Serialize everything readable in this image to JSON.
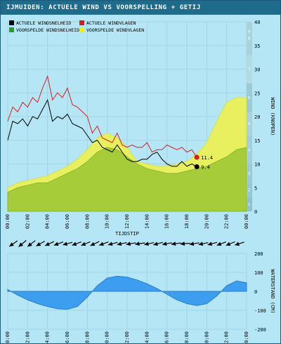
{
  "title": "IJMUIDEN: ACTUELE WIND VS VOORSPELLING + GETIJ",
  "colors": {
    "background": "#b4e6f5",
    "title_bar": "#1f6b8c",
    "actual_speed": "#000000",
    "actual_gust": "#d62020",
    "forecast_speed": "#a6cc3a",
    "forecast_gust": "#e8f060",
    "tide": "#3d9ef0",
    "bft_bar": "#9ccbd6"
  },
  "chart_data": [
    {
      "type": "area",
      "chart_id": "wind",
      "xlabel": "TIJDSTIP",
      "ylabel": "WIND (KNOPEN)",
      "ylim": [
        0,
        40
      ],
      "xlim": [
        0,
        24
      ],
      "y_ticks": [
        "0",
        "5",
        "10",
        "15",
        "20",
        "25",
        "30",
        "35",
        "40"
      ],
      "x_ticks": [
        "00:00",
        "02:00",
        "04:00",
        "06:00",
        "08:00",
        "10:00",
        "12:00",
        "14:00",
        "16:00",
        "18:00",
        "20:00",
        "22:00",
        "00:00"
      ],
      "beaufort_labels": [
        "1",
        "2",
        "3",
        "4",
        "5",
        "6",
        "7",
        "8",
        "9",
        "10",
        "11",
        "12"
      ],
      "grid": true,
      "legend_position": "top-left",
      "legend": [
        "ACTUELE WINDSNELHEID",
        "ACTUELE WINDVLAGEN",
        "VOORSPELDE WINDSNELHEID",
        "VOORSPELDE WINDVLAGEN"
      ],
      "series": [
        {
          "name": "ACTUELE WINDSNELHEID",
          "x": [
            0,
            0.5,
            1,
            1.5,
            2,
            2.5,
            3,
            3.5,
            4,
            4.5,
            5,
            5.5,
            6,
            6.5,
            7,
            7.5,
            8,
            8.5,
            9,
            9.5,
            10,
            10.5,
            11,
            11.5,
            12,
            12.5,
            13,
            13.5,
            14,
            14.5,
            15,
            15.5,
            16,
            16.5,
            17,
            17.5,
            18,
            18.5,
            19
          ],
          "values": [
            15,
            19,
            18.5,
            19.5,
            18,
            20,
            19.5,
            21.5,
            23.5,
            19,
            20,
            19.5,
            20.5,
            18.5,
            18,
            17.5,
            16,
            14.5,
            15,
            13.5,
            13,
            12.5,
            14,
            12.5,
            11,
            10.5,
            10.5,
            11,
            11,
            12,
            12.5,
            11,
            10,
            9.5,
            9.5,
            10.5,
            9.5,
            10,
            9.4
          ]
        },
        {
          "name": "ACTUELE WINDVLAGEN",
          "x": [
            0,
            0.5,
            1,
            1.5,
            2,
            2.5,
            3,
            3.5,
            4,
            4.5,
            5,
            5.5,
            6,
            6.5,
            7,
            7.5,
            8,
            8.5,
            9,
            9.5,
            10,
            10.5,
            11,
            11.5,
            12,
            12.5,
            13,
            13.5,
            14,
            14.5,
            15,
            15.5,
            16,
            16.5,
            17,
            17.5,
            18,
            18.5,
            19
          ],
          "values": [
            19,
            22,
            21,
            23,
            22,
            24,
            23,
            26,
            28.5,
            23.5,
            25,
            24,
            26,
            22.5,
            22,
            21,
            20,
            16.5,
            18,
            15.5,
            15,
            14.5,
            16.5,
            14,
            13.5,
            14,
            13.5,
            13.5,
            14.5,
            12.5,
            13,
            13,
            14,
            13.5,
            13,
            13.5,
            12.5,
            13,
            11.4
          ]
        },
        {
          "name": "VOORSPELDE WINDSNELHEID",
          "x": [
            0,
            1,
            2,
            3,
            4,
            5,
            6,
            7,
            8,
            9,
            10,
            11,
            12,
            13,
            14,
            15,
            16,
            17,
            18,
            19,
            20,
            21,
            22,
            23,
            24
          ],
          "values": [
            4,
            5,
            5.5,
            6,
            6,
            7,
            8,
            9,
            10.5,
            12.5,
            13.5,
            13,
            11.5,
            10,
            9,
            8.5,
            8,
            8,
            8.5,
            9,
            9.5,
            10.5,
            11.5,
            13,
            13.5
          ]
        },
        {
          "name": "VOORSPELDE WINDVLAGEN",
          "x": [
            0,
            1,
            2,
            3,
            4,
            5,
            6,
            7,
            8,
            9,
            10,
            11,
            12,
            13,
            14,
            15,
            16,
            17,
            18,
            19,
            20,
            21,
            22,
            23,
            24
          ],
          "values": [
            5,
            6,
            6.5,
            7,
            7.5,
            8.5,
            9.5,
            11,
            13,
            15.5,
            16.5,
            15.5,
            13.5,
            10.5,
            10,
            9.5,
            9.5,
            10,
            10.5,
            12,
            14.5,
            19,
            23,
            24,
            24
          ]
        }
      ],
      "annotations": [
        {
          "x": 19,
          "y": 11.4,
          "text": "11.4"
        },
        {
          "x": 19,
          "y": 9.4,
          "text": "9.4"
        }
      ]
    },
    {
      "type": "area",
      "chart_id": "tide",
      "ylabel": "WATERSTAND (CM)",
      "ylim": [
        -200,
        200
      ],
      "xlim": [
        0,
        24
      ],
      "y_ticks": [
        "-200",
        "-100",
        "0",
        "100",
        "200"
      ],
      "x_ticks": [
        "00:00",
        "02:00",
        "04:00",
        "06:00",
        "08:00",
        "10:00",
        "12:00",
        "14:00",
        "16:00",
        "18:00",
        "20:00",
        "22:00",
        "00:00"
      ],
      "grid": true,
      "series": [
        {
          "x": [
            0,
            1,
            2,
            3,
            4,
            5,
            6,
            7,
            8,
            9,
            10,
            11,
            12,
            13,
            14,
            15,
            16,
            17,
            18,
            19,
            20,
            21,
            22,
            23,
            24
          ],
          "values": [
            10,
            -20,
            -45,
            -65,
            -80,
            -92,
            -95,
            -80,
            -30,
            30,
            70,
            80,
            75,
            60,
            40,
            15,
            -15,
            -45,
            -65,
            -75,
            -65,
            -25,
            30,
            55,
            45
          ]
        }
      ]
    }
  ],
  "wind_directions": [
    235,
    230,
    232,
    240,
    245,
    250,
    255,
    250,
    248,
    245,
    250,
    255,
    258,
    260,
    262,
    258,
    255,
    260,
    262,
    265,
    260,
    258,
    255,
    250,
    248,
    252
  ]
}
